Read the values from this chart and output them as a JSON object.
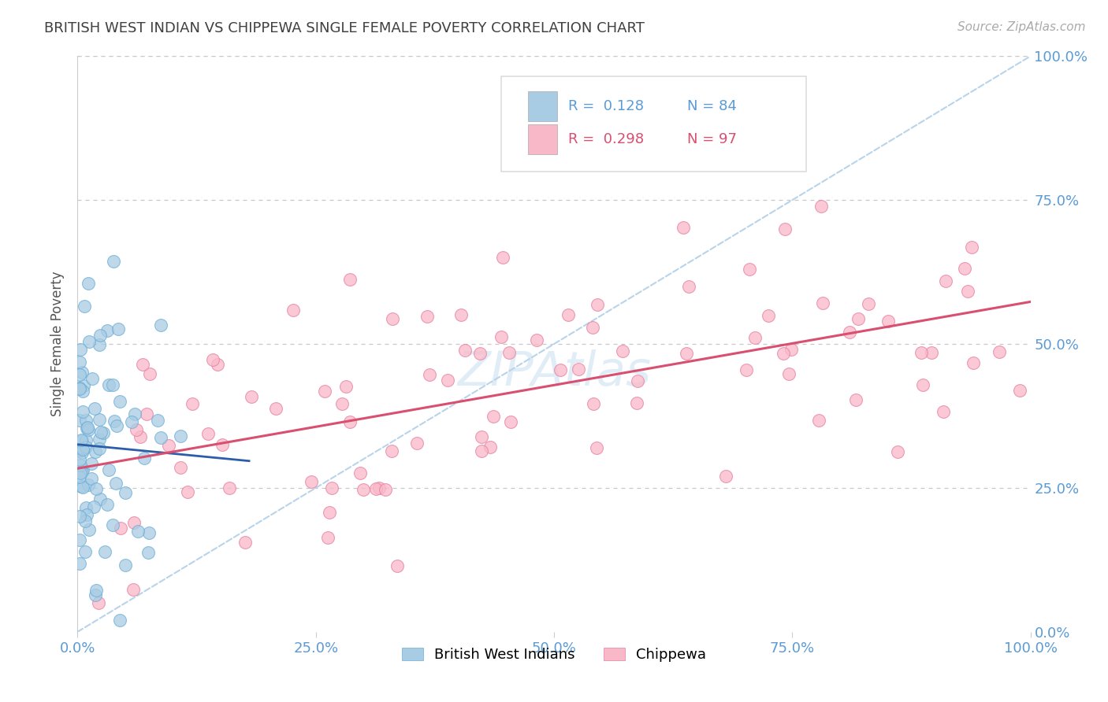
{
  "title": "BRITISH WEST INDIAN VS CHIPPEWA SINGLE FEMALE POVERTY CORRELATION CHART",
  "source": "Source: ZipAtlas.com",
  "ylabel": "Single Female Poverty",
  "r_blue": 0.128,
  "n_blue": 84,
  "r_pink": 0.298,
  "n_pink": 97,
  "legend_label_blue": "British West Indians",
  "legend_label_pink": "Chippewa",
  "x_tick_labels": [
    "0.0%",
    "25.0%",
    "50.0%",
    "75.0%",
    "100.0%"
  ],
  "y_tick_labels": [
    "0.0%",
    "25.0%",
    "50.0%",
    "75.0%",
    "100.0%"
  ],
  "blue_dot_color": "#a8cce4",
  "blue_dot_edge": "#6baed6",
  "pink_dot_color": "#f9b8c8",
  "pink_dot_edge": "#e87fa0",
  "blue_trend_color": "#2b5ea7",
  "pink_trend_color": "#d94f70",
  "diagonal_color": "#b8d4ea",
  "background_color": "#ffffff",
  "grid_color": "#c8c8c8",
  "title_color": "#404040",
  "axis_label_color": "#5b9bd5",
  "source_color": "#aaaaaa",
  "watermark_color": "#c8dff0",
  "legend_text_blue": "#5b9bd5",
  "legend_text_pink": "#d94f70"
}
